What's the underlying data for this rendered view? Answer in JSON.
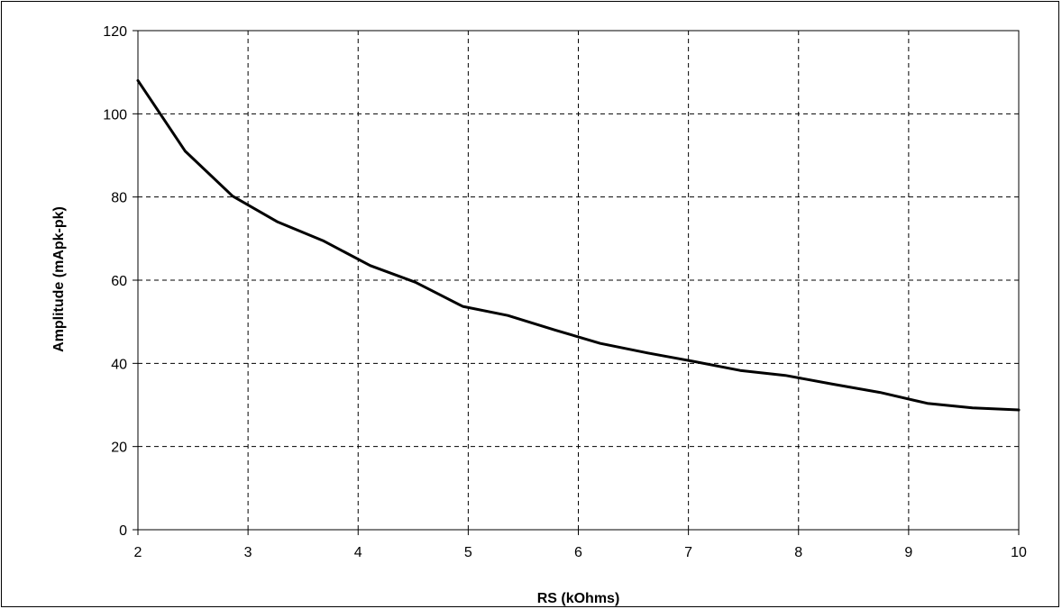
{
  "chart_data": {
    "type": "line",
    "title": "",
    "xlabel": "RS (kOhms)",
    "ylabel": "Amplitude (mApk-pk)",
    "xlim": [
      2,
      10
    ],
    "ylim": [
      0,
      120
    ],
    "x_ticks": [
      2,
      3,
      4,
      5,
      6,
      7,
      8,
      9,
      10
    ],
    "y_ticks": [
      0,
      20,
      40,
      60,
      80,
      100,
      120
    ],
    "grid": true,
    "grid_style": "dashed",
    "legend": false,
    "series": [
      {
        "color": "#000000",
        "x": [
          2.0,
          2.43,
          2.86,
          3.27,
          3.68,
          4.11,
          4.52,
          4.95,
          5.36,
          5.79,
          6.2,
          6.63,
          7.04,
          7.47,
          7.88,
          8.31,
          8.74,
          9.17,
          9.58,
          10.0
        ],
        "y": [
          108,
          91,
          80.2,
          74,
          69.5,
          63.5,
          59.5,
          53.7,
          51.5,
          48,
          44.8,
          42.5,
          40.5,
          38.3,
          37.1,
          35,
          33,
          30.4,
          29.3,
          28.8
        ]
      }
    ]
  }
}
